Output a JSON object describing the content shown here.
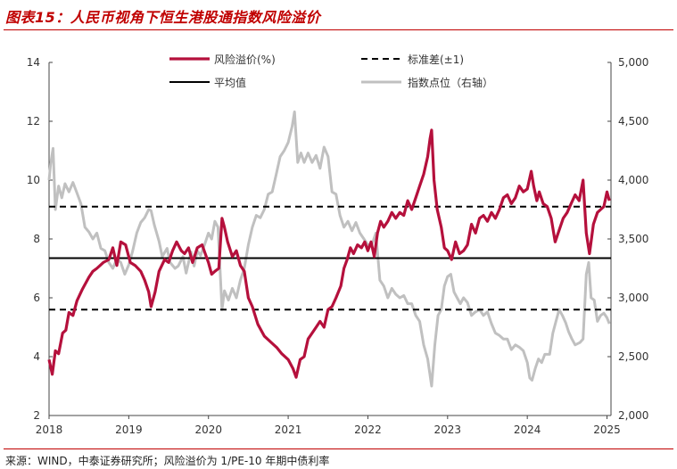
{
  "header": {
    "title": "图表15：人民币视角下恒生港股通指数风险溢价"
  },
  "footer": {
    "source": "来源：WIND，中泰证券研究所；风险溢价为 1/PE-10 年期中债利率"
  },
  "colors": {
    "accent": "#c00000",
    "risk": "#b5103c",
    "index": "#c0c0c0",
    "line": "#000000"
  },
  "chart_data": {
    "type": "line",
    "xlim": [
      2018.0,
      2025.05
    ],
    "ylim": [
      2,
      14
    ],
    "y2lim": [
      2000,
      5000
    ],
    "xticks": [
      "2018",
      "2019",
      "2020",
      "2021",
      "2022",
      "2023",
      "2024",
      "2025"
    ],
    "yticks": [
      "2",
      "4",
      "6",
      "8",
      "10",
      "12",
      "14"
    ],
    "y2ticks": [
      "2,000",
      "2,500",
      "3,000",
      "3,500",
      "4,000",
      "4,500",
      "5,000"
    ],
    "legend": {
      "risk": "风险溢价(%)",
      "std": "标准差(±1)",
      "mean": "平均值",
      "index": "指数点位（右轴）"
    },
    "mean": 7.35,
    "std_upper": 9.1,
    "std_lower": 5.6,
    "series": [
      {
        "name": "风险溢价(%)",
        "axis": "left",
        "points": [
          [
            2018.0,
            3.9
          ],
          [
            2018.04,
            3.4
          ],
          [
            2018.08,
            4.2
          ],
          [
            2018.12,
            4.1
          ],
          [
            2018.17,
            4.8
          ],
          [
            2018.21,
            4.9
          ],
          [
            2018.25,
            5.5
          ],
          [
            2018.3,
            5.4
          ],
          [
            2018.35,
            5.9
          ],
          [
            2018.42,
            6.3
          ],
          [
            2018.5,
            6.7
          ],
          [
            2018.55,
            6.9
          ],
          [
            2018.6,
            7.0
          ],
          [
            2018.68,
            7.2
          ],
          [
            2018.75,
            7.3
          ],
          [
            2018.8,
            7.7
          ],
          [
            2018.85,
            7.1
          ],
          [
            2018.9,
            7.9
          ],
          [
            2018.96,
            7.8
          ],
          [
            2019.02,
            7.2
          ],
          [
            2019.08,
            7.1
          ],
          [
            2019.15,
            6.9
          ],
          [
            2019.2,
            6.6
          ],
          [
            2019.25,
            6.2
          ],
          [
            2019.28,
            5.7
          ],
          [
            2019.33,
            6.2
          ],
          [
            2019.38,
            6.9
          ],
          [
            2019.45,
            7.3
          ],
          [
            2019.5,
            7.2
          ],
          [
            2019.55,
            7.6
          ],
          [
            2019.6,
            7.9
          ],
          [
            2019.66,
            7.6
          ],
          [
            2019.7,
            7.5
          ],
          [
            2019.75,
            7.7
          ],
          [
            2019.8,
            7.2
          ],
          [
            2019.86,
            7.7
          ],
          [
            2019.92,
            7.8
          ],
          [
            2019.96,
            7.5
          ],
          [
            2020.0,
            7.2
          ],
          [
            2020.04,
            6.8
          ],
          [
            2020.08,
            6.9
          ],
          [
            2020.13,
            7.0
          ],
          [
            2020.17,
            8.7
          ],
          [
            2020.2,
            8.4
          ],
          [
            2020.24,
            7.9
          ],
          [
            2020.3,
            7.4
          ],
          [
            2020.35,
            7.6
          ],
          [
            2020.4,
            7.1
          ],
          [
            2020.45,
            6.9
          ],
          [
            2020.5,
            6.0
          ],
          [
            2020.55,
            5.7
          ],
          [
            2020.62,
            5.1
          ],
          [
            2020.7,
            4.7
          ],
          [
            2020.78,
            4.5
          ],
          [
            2020.86,
            4.3
          ],
          [
            2020.92,
            4.1
          ],
          [
            2021.0,
            3.9
          ],
          [
            2021.06,
            3.6
          ],
          [
            2021.1,
            3.3
          ],
          [
            2021.15,
            3.9
          ],
          [
            2021.2,
            4.0
          ],
          [
            2021.25,
            4.6
          ],
          [
            2021.3,
            4.8
          ],
          [
            2021.35,
            5.0
          ],
          [
            2021.4,
            5.2
          ],
          [
            2021.45,
            5.0
          ],
          [
            2021.5,
            5.6
          ],
          [
            2021.55,
            5.7
          ],
          [
            2021.6,
            6.0
          ],
          [
            2021.66,
            6.4
          ],
          [
            2021.7,
            7.0
          ],
          [
            2021.74,
            7.3
          ],
          [
            2021.78,
            7.7
          ],
          [
            2021.82,
            7.5
          ],
          [
            2021.87,
            7.8
          ],
          [
            2021.92,
            7.7
          ],
          [
            2021.96,
            7.9
          ],
          [
            2022.0,
            7.6
          ],
          [
            2022.04,
            7.9
          ],
          [
            2022.08,
            7.4
          ],
          [
            2022.12,
            8.2
          ],
          [
            2022.16,
            8.6
          ],
          [
            2022.2,
            8.4
          ],
          [
            2022.25,
            8.6
          ],
          [
            2022.3,
            8.9
          ],
          [
            2022.35,
            8.7
          ],
          [
            2022.4,
            8.9
          ],
          [
            2022.45,
            8.8
          ],
          [
            2022.5,
            9.3
          ],
          [
            2022.55,
            9.0
          ],
          [
            2022.6,
            9.4
          ],
          [
            2022.65,
            9.8
          ],
          [
            2022.7,
            10.2
          ],
          [
            2022.75,
            10.8
          ],
          [
            2022.78,
            11.4
          ],
          [
            2022.8,
            11.7
          ],
          [
            2022.83,
            10.0
          ],
          [
            2022.87,
            9.0
          ],
          [
            2022.92,
            8.4
          ],
          [
            2022.96,
            7.7
          ],
          [
            2023.0,
            7.6
          ],
          [
            2023.05,
            7.3
          ],
          [
            2023.1,
            7.9
          ],
          [
            2023.15,
            7.5
          ],
          [
            2023.2,
            7.6
          ],
          [
            2023.25,
            7.8
          ],
          [
            2023.3,
            8.5
          ],
          [
            2023.35,
            8.2
          ],
          [
            2023.4,
            8.7
          ],
          [
            2023.45,
            8.8
          ],
          [
            2023.5,
            8.6
          ],
          [
            2023.55,
            8.9
          ],
          [
            2023.6,
            8.7
          ],
          [
            2023.65,
            9.0
          ],
          [
            2023.7,
            9.4
          ],
          [
            2023.75,
            9.5
          ],
          [
            2023.8,
            9.2
          ],
          [
            2023.85,
            9.4
          ],
          [
            2023.9,
            9.8
          ],
          [
            2023.95,
            9.6
          ],
          [
            2024.0,
            9.7
          ],
          [
            2024.05,
            10.3
          ],
          [
            2024.08,
            9.8
          ],
          [
            2024.12,
            9.3
          ],
          [
            2024.15,
            9.6
          ],
          [
            2024.2,
            9.2
          ],
          [
            2024.25,
            9.1
          ],
          [
            2024.3,
            8.7
          ],
          [
            2024.35,
            7.9
          ],
          [
            2024.4,
            8.3
          ],
          [
            2024.45,
            8.7
          ],
          [
            2024.5,
            8.9
          ],
          [
            2024.55,
            9.2
          ],
          [
            2024.6,
            9.5
          ],
          [
            2024.65,
            9.3
          ],
          [
            2024.7,
            10.0
          ],
          [
            2024.74,
            8.2
          ],
          [
            2024.78,
            7.5
          ],
          [
            2024.83,
            8.5
          ],
          [
            2024.88,
            8.9
          ],
          [
            2024.92,
            9.0
          ],
          [
            2024.96,
            9.1
          ],
          [
            2025.0,
            9.6
          ],
          [
            2025.03,
            9.3
          ]
        ]
      },
      {
        "name": "指数点位（右轴）",
        "axis": "right",
        "points": [
          [
            2018.0,
            4000
          ],
          [
            2018.02,
            4140
          ],
          [
            2018.05,
            4270
          ],
          [
            2018.08,
            3750
          ],
          [
            2018.12,
            3950
          ],
          [
            2018.16,
            3850
          ],
          [
            2018.2,
            3970
          ],
          [
            2018.25,
            3900
          ],
          [
            2018.3,
            3980
          ],
          [
            2018.35,
            3890
          ],
          [
            2018.4,
            3800
          ],
          [
            2018.45,
            3600
          ],
          [
            2018.5,
            3560
          ],
          [
            2018.55,
            3500
          ],
          [
            2018.6,
            3550
          ],
          [
            2018.65,
            3420
          ],
          [
            2018.7,
            3400
          ],
          [
            2018.75,
            3300
          ],
          [
            2018.8,
            3250
          ],
          [
            2018.85,
            3330
          ],
          [
            2018.9,
            3300
          ],
          [
            2018.95,
            3200
          ],
          [
            2019.0,
            3280
          ],
          [
            2019.05,
            3400
          ],
          [
            2019.1,
            3550
          ],
          [
            2019.15,
            3640
          ],
          [
            2019.2,
            3680
          ],
          [
            2019.25,
            3750
          ],
          [
            2019.28,
            3740
          ],
          [
            2019.32,
            3620
          ],
          [
            2019.38,
            3480
          ],
          [
            2019.42,
            3350
          ],
          [
            2019.48,
            3420
          ],
          [
            2019.52,
            3300
          ],
          [
            2019.58,
            3250
          ],
          [
            2019.62,
            3270
          ],
          [
            2019.68,
            3350
          ],
          [
            2019.72,
            3210
          ],
          [
            2019.78,
            3390
          ],
          [
            2019.82,
            3270
          ],
          [
            2019.86,
            3400
          ],
          [
            2019.9,
            3360
          ],
          [
            2019.95,
            3450
          ],
          [
            2020.0,
            3550
          ],
          [
            2020.04,
            3500
          ],
          [
            2020.08,
            3650
          ],
          [
            2020.12,
            3600
          ],
          [
            2020.17,
            2900
          ],
          [
            2020.2,
            3060
          ],
          [
            2020.25,
            2980
          ],
          [
            2020.3,
            3080
          ],
          [
            2020.35,
            3000
          ],
          [
            2020.4,
            3150
          ],
          [
            2020.45,
            3250
          ],
          [
            2020.5,
            3450
          ],
          [
            2020.55,
            3600
          ],
          [
            2020.6,
            3700
          ],
          [
            2020.65,
            3680
          ],
          [
            2020.7,
            3750
          ],
          [
            2020.75,
            3880
          ],
          [
            2020.8,
            3900
          ],
          [
            2020.85,
            4050
          ],
          [
            2020.9,
            4200
          ],
          [
            2020.95,
            4250
          ],
          [
            2021.0,
            4320
          ],
          [
            2021.05,
            4460
          ],
          [
            2021.08,
            4580
          ],
          [
            2021.12,
            4150
          ],
          [
            2021.16,
            4230
          ],
          [
            2021.2,
            4150
          ],
          [
            2021.25,
            4230
          ],
          [
            2021.3,
            4150
          ],
          [
            2021.35,
            4210
          ],
          [
            2021.4,
            4100
          ],
          [
            2021.45,
            4280
          ],
          [
            2021.5,
            4200
          ],
          [
            2021.55,
            3900
          ],
          [
            2021.6,
            3880
          ],
          [
            2021.65,
            3700
          ],
          [
            2021.7,
            3600
          ],
          [
            2021.75,
            3650
          ],
          [
            2021.8,
            3570
          ],
          [
            2021.85,
            3640
          ],
          [
            2021.9,
            3550
          ],
          [
            2021.95,
            3500
          ],
          [
            2022.0,
            3450
          ],
          [
            2022.05,
            3450
          ],
          [
            2022.1,
            3550
          ],
          [
            2022.15,
            3150
          ],
          [
            2022.2,
            3100
          ],
          [
            2022.25,
            3000
          ],
          [
            2022.3,
            3080
          ],
          [
            2022.35,
            3030
          ],
          [
            2022.4,
            3000
          ],
          [
            2022.45,
            3020
          ],
          [
            2022.5,
            2950
          ],
          [
            2022.55,
            2950
          ],
          [
            2022.6,
            2850
          ],
          [
            2022.65,
            2800
          ],
          [
            2022.7,
            2600
          ],
          [
            2022.75,
            2480
          ],
          [
            2022.8,
            2250
          ],
          [
            2022.84,
            2600
          ],
          [
            2022.88,
            2850
          ],
          [
            2022.92,
            2900
          ],
          [
            2022.96,
            3100
          ],
          [
            2023.0,
            3180
          ],
          [
            2023.04,
            3200
          ],
          [
            2023.08,
            3050
          ],
          [
            2023.12,
            3000
          ],
          [
            2023.16,
            2950
          ],
          [
            2023.2,
            3000
          ],
          [
            2023.25,
            2960
          ],
          [
            2023.3,
            2850
          ],
          [
            2023.35,
            2880
          ],
          [
            2023.4,
            2900
          ],
          [
            2023.45,
            2850
          ],
          [
            2023.5,
            2880
          ],
          [
            2023.55,
            2780
          ],
          [
            2023.6,
            2700
          ],
          [
            2023.65,
            2680
          ],
          [
            2023.7,
            2650
          ],
          [
            2023.75,
            2650
          ],
          [
            2023.8,
            2560
          ],
          [
            2023.85,
            2600
          ],
          [
            2023.9,
            2580
          ],
          [
            2023.95,
            2550
          ],
          [
            2024.0,
            2450
          ],
          [
            2024.03,
            2320
          ],
          [
            2024.06,
            2300
          ],
          [
            2024.1,
            2400
          ],
          [
            2024.14,
            2480
          ],
          [
            2024.18,
            2450
          ],
          [
            2024.22,
            2520
          ],
          [
            2024.28,
            2520
          ],
          [
            2024.32,
            2700
          ],
          [
            2024.36,
            2800
          ],
          [
            2024.4,
            2900
          ],
          [
            2024.44,
            2850
          ],
          [
            2024.48,
            2790
          ],
          [
            2024.52,
            2710
          ],
          [
            2024.56,
            2650
          ],
          [
            2024.6,
            2600
          ],
          [
            2024.66,
            2620
          ],
          [
            2024.7,
            2650
          ],
          [
            2024.74,
            3200
          ],
          [
            2024.77,
            3300
          ],
          [
            2024.8,
            3000
          ],
          [
            2024.84,
            2980
          ],
          [
            2024.88,
            2800
          ],
          [
            2024.92,
            2850
          ],
          [
            2024.96,
            2870
          ],
          [
            2025.0,
            2830
          ],
          [
            2025.03,
            2780
          ]
        ]
      }
    ]
  }
}
